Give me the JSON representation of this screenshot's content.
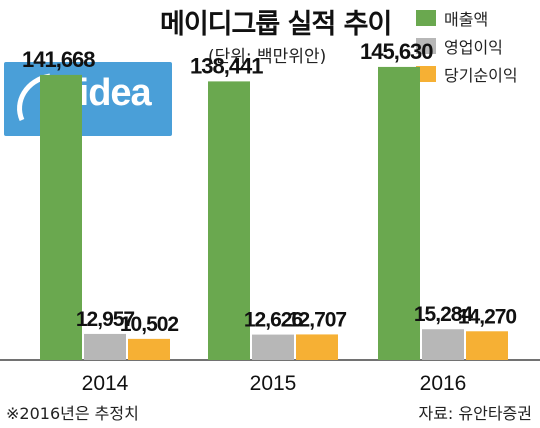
{
  "chart_data": {
    "type": "bar",
    "title": "메이디그룹 실적 추이",
    "subtitle": "(단위: 백만위안)",
    "categories": [
      "2014",
      "2015",
      "2016"
    ],
    "series": [
      {
        "name": "매출액",
        "color": "#6aa84f",
        "values": [
          141668,
          138441,
          145630
        ]
      },
      {
        "name": "영업이익",
        "color": "#b7b7b7",
        "values": [
          12957,
          12626,
          15284
        ]
      },
      {
        "name": "당기순이익",
        "color": "#f6b034",
        "values": [
          10502,
          12707,
          14270
        ]
      }
    ],
    "value_labels": [
      [
        "141,668",
        "138,441",
        "145,630"
      ],
      [
        "12,957",
        "12,626",
        "15,284"
      ],
      [
        "10,502",
        "12,707",
        "14,270"
      ]
    ],
    "ylim": [
      0,
      160000
    ],
    "grid": false,
    "legend_position": "top-right"
  },
  "logo": {
    "text": "Midea"
  },
  "footnote": "※2016년은 추정치",
  "source": "자료: 유안타증권"
}
